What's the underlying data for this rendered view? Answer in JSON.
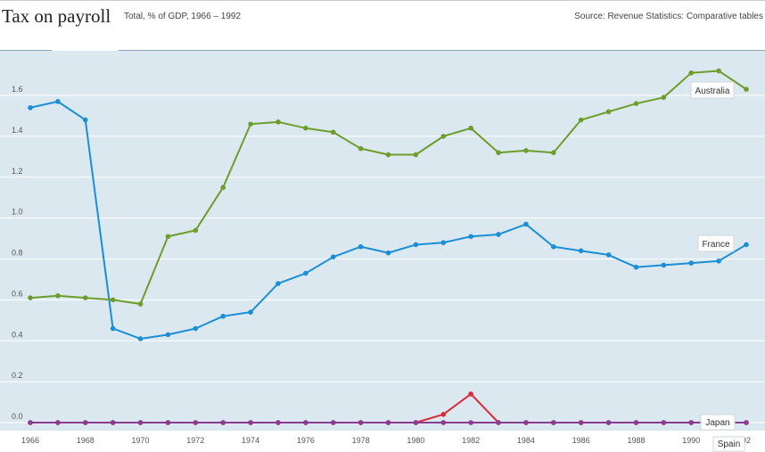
{
  "header": {
    "title": "Tax on payroll",
    "subtitle": "Total, % of GDP, 1966 – 1992",
    "source": "Source: Revenue Statistics: Comparative tables"
  },
  "colors": {
    "background": "#dce8f0",
    "grid": "#ffffff",
    "Australia": "#6d9d2a",
    "France": "#1a8fd6",
    "Japan": "#d62d3a",
    "Spain": "#8a3d8f"
  },
  "chart_data": {
    "type": "line",
    "x": [
      1966,
      1967,
      1968,
      1969,
      1970,
      1971,
      1972,
      1973,
      1974,
      1975,
      1976,
      1977,
      1978,
      1979,
      1980,
      1981,
      1982,
      1983,
      1984,
      1985,
      1986,
      1987,
      1988,
      1989,
      1990,
      1991,
      1992
    ],
    "x_tick_labels": [
      "1966",
      "1968",
      "1970",
      "1972",
      "1974",
      "1976",
      "1978",
      "1980",
      "1982",
      "1984",
      "1986",
      "1988",
      "1990",
      "92"
    ],
    "y_tick_labels": [
      "0.0",
      "0.2",
      "0.4",
      "0.6",
      "0.8",
      "1.0",
      "1.2",
      "1.4",
      "1.6"
    ],
    "ylim": [
      0,
      1.8
    ],
    "xlim": [
      1966,
      1992
    ],
    "grid": true,
    "series": [
      {
        "name": "Australia",
        "values": [
          0.61,
          0.62,
          0.61,
          0.6,
          0.58,
          0.91,
          0.94,
          1.15,
          1.46,
          1.47,
          1.44,
          1.42,
          1.34,
          1.31,
          1.31,
          1.4,
          1.44,
          1.32,
          1.33,
          1.32,
          1.48,
          1.52,
          1.56,
          1.59,
          1.71,
          1.72,
          1.63
        ]
      },
      {
        "name": "France",
        "values": [
          1.54,
          1.57,
          1.48,
          0.46,
          0.41,
          0.43,
          0.46,
          0.52,
          0.54,
          0.68,
          0.73,
          0.81,
          0.86,
          0.83,
          0.87,
          0.88,
          0.91,
          0.92,
          0.97,
          0.86,
          0.84,
          0.82,
          0.76,
          0.77,
          0.78,
          0.79,
          0.87
        ]
      },
      {
        "name": "Japan",
        "values": [
          0,
          0,
          0,
          0,
          0,
          0,
          0,
          0,
          0,
          0,
          0,
          0,
          0,
          0,
          0,
          0.04,
          0.14,
          0,
          0,
          0,
          0,
          0,
          0,
          0,
          0,
          0,
          0
        ]
      },
      {
        "name": "Spain",
        "values": [
          0,
          0,
          0,
          0,
          0,
          0,
          0,
          0,
          0,
          0,
          0,
          0,
          0,
          0,
          0,
          0,
          0,
          0,
          0,
          0,
          0,
          0,
          0,
          0,
          0,
          0,
          0
        ]
      }
    ]
  }
}
